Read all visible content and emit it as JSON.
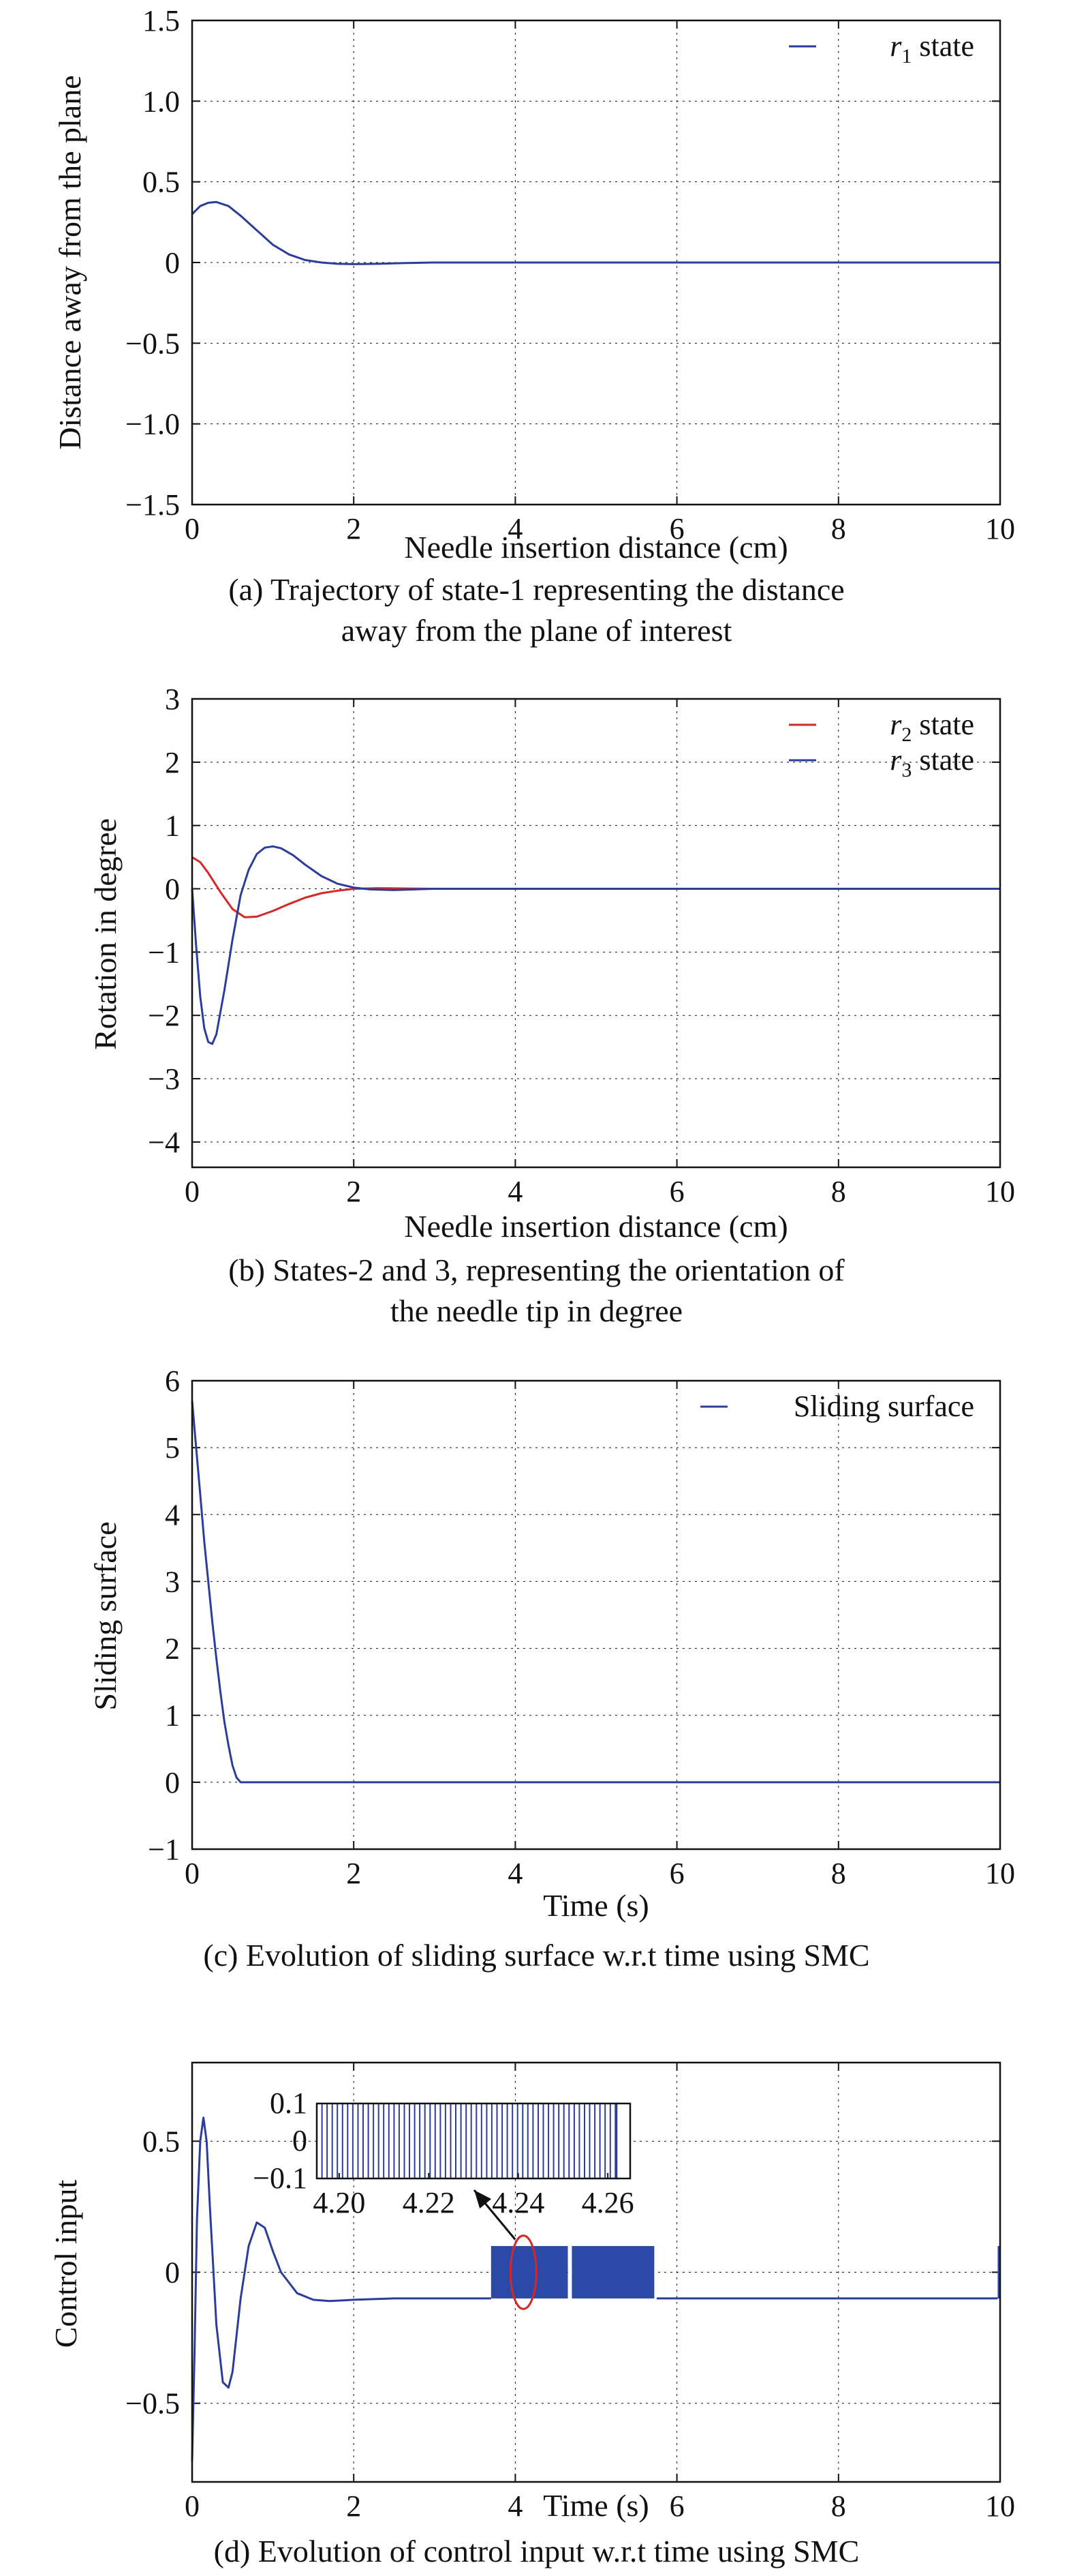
{
  "chart_data": [
    {
      "id": "a",
      "type": "line",
      "title": "",
      "xlabel": "Needle insertion distance (cm)",
      "ylabel": "Distance away from the plane",
      "xlim": [
        0,
        10
      ],
      "ylim": [
        -1.5,
        1.5
      ],
      "xticks": [
        "0",
        "2",
        "4",
        "6",
        "8",
        "10"
      ],
      "yticks": [
        "−1.5",
        "−1.0",
        "−0.5",
        "0",
        "0.5",
        "1.0",
        "1.5"
      ],
      "grid": true,
      "legend_position": "top-right",
      "series": [
        {
          "name": "r1 state",
          "legend_var": "r",
          "legend_sub": "1",
          "legend_rest": " state",
          "color": "#2b3d9a",
          "x": [
            0,
            0.1,
            0.2,
            0.3,
            0.45,
            0.6,
            0.8,
            1.0,
            1.2,
            1.4,
            1.6,
            1.8,
            2.0,
            2.3,
            2.6,
            3.0,
            4,
            6,
            8,
            10
          ],
          "y": [
            0.3,
            0.35,
            0.37,
            0.375,
            0.35,
            0.29,
            0.2,
            0.11,
            0.05,
            0.015,
            0.0,
            -0.008,
            -0.01,
            -0.008,
            -0.004,
            0.0,
            0.0,
            0.0,
            0.0,
            0.0
          ]
        }
      ],
      "caption_lines": [
        "(a) Trajectory of state-1 representing the distance",
        "away from the plane of interest"
      ]
    },
    {
      "id": "b",
      "type": "line",
      "title": "",
      "xlabel": "Needle insertion distance (cm)",
      "ylabel": "Rotation in degree",
      "xlim": [
        0,
        10
      ],
      "ylim": [
        -4.4,
        3
      ],
      "xticks": [
        "0",
        "2",
        "4",
        "6",
        "8",
        "10"
      ],
      "yticks": [
        "−4",
        "−3",
        "−2",
        "−1",
        "0",
        "1",
        "2",
        "3"
      ],
      "grid": true,
      "legend_position": "top-right",
      "series": [
        {
          "name": "r2 state",
          "legend_var": "r",
          "legend_sub": "2",
          "legend_rest": " state",
          "color": "#d62728",
          "x": [
            0,
            0.1,
            0.2,
            0.35,
            0.5,
            0.65,
            0.8,
            1.0,
            1.2,
            1.4,
            1.6,
            1.8,
            2.0,
            2.3,
            2.6,
            3.0,
            4,
            6,
            8,
            10
          ],
          "y": [
            0.5,
            0.42,
            0.25,
            -0.05,
            -0.32,
            -0.45,
            -0.44,
            -0.35,
            -0.24,
            -0.14,
            -0.07,
            -0.03,
            0.0,
            0.01,
            0.005,
            0.0,
            0.0,
            0.0,
            0.0,
            0.0
          ]
        },
        {
          "name": "r3 state",
          "legend_var": "r",
          "legend_sub": "3",
          "legend_rest": " state",
          "color": "#2b3d9a",
          "x": [
            0,
            0.05,
            0.1,
            0.15,
            0.2,
            0.25,
            0.3,
            0.4,
            0.5,
            0.6,
            0.7,
            0.8,
            0.9,
            1.0,
            1.1,
            1.25,
            1.4,
            1.6,
            1.8,
            2.0,
            2.2,
            2.5,
            3.0,
            4,
            6,
            8,
            10
          ],
          "y": [
            0.0,
            -0.9,
            -1.7,
            -2.2,
            -2.42,
            -2.45,
            -2.3,
            -1.6,
            -0.8,
            -0.1,
            0.3,
            0.55,
            0.65,
            0.67,
            0.64,
            0.53,
            0.38,
            0.2,
            0.08,
            0.02,
            -0.01,
            -0.02,
            0.0,
            0.0,
            0.0,
            0.0,
            0.0
          ]
        }
      ],
      "caption_lines": [
        "(b) States-2 and 3, representing the orientation of",
        "the needle tip in degree"
      ]
    },
    {
      "id": "c",
      "type": "line",
      "title": "",
      "xlabel": "Time (s)",
      "ylabel": "Sliding surface",
      "xlim": [
        0,
        10
      ],
      "ylim": [
        -1,
        6
      ],
      "xticks": [
        "0",
        "2",
        "4",
        "6",
        "8",
        "10"
      ],
      "yticks": [
        "−1",
        "0",
        "1",
        "2",
        "3",
        "4",
        "5",
        "6"
      ],
      "grid": true,
      "legend_position": "top-right",
      "series": [
        {
          "name": "Sliding surface",
          "legend_var": "",
          "legend_sub": "",
          "legend_rest": "Sliding surface",
          "color": "#2b3d9a",
          "x": [
            0,
            0.05,
            0.1,
            0.15,
            0.2,
            0.25,
            0.3,
            0.35,
            0.4,
            0.45,
            0.5,
            0.55,
            0.6,
            0.62,
            1,
            2,
            4,
            6,
            8,
            10
          ],
          "y": [
            5.7,
            5.0,
            4.3,
            3.6,
            3.0,
            2.4,
            1.85,
            1.35,
            0.9,
            0.55,
            0.25,
            0.07,
            0.0,
            0.0,
            0.0,
            0.0,
            0.0,
            0.0,
            0.0,
            0.0
          ]
        }
      ],
      "caption_lines": [
        "(c) Evolution of sliding surface w.r.t time using SMC"
      ]
    },
    {
      "id": "d",
      "type": "line",
      "title": "",
      "xlabel": "Time (s)",
      "ylabel": "Control input",
      "xlim": [
        0,
        10
      ],
      "ylim": [
        -0.8,
        0.8
      ],
      "xticks": [
        "0",
        "2",
        "4",
        "6",
        "8",
        "10"
      ],
      "yticks": [
        "−0.5",
        "0",
        "0.5"
      ],
      "ytick_values": [
        -0.5,
        0,
        0.5
      ],
      "grid": true,
      "series": [
        {
          "name": "",
          "color": "#2b3d9a",
          "x": [
            0,
            0.03,
            0.06,
            0.1,
            0.14,
            0.18,
            0.22,
            0.3,
            0.38,
            0.45,
            0.5,
            0.6,
            0.7,
            0.8,
            0.9,
            1.0,
            1.1,
            1.3,
            1.5,
            1.7,
            2.0,
            2.5,
            3.0,
            3.7
          ],
          "y": [
            -0.72,
            -0.3,
            0.2,
            0.5,
            0.59,
            0.5,
            0.25,
            -0.2,
            -0.42,
            -0.44,
            -0.38,
            -0.1,
            0.1,
            0.19,
            0.17,
            0.08,
            0.0,
            -0.08,
            -0.105,
            -0.11,
            -0.105,
            -0.1,
            -0.1,
            -0.1
          ]
        },
        {
          "name": "",
          "color": "#2b3d9a",
          "x": [
            5.75,
            6,
            7,
            8,
            9,
            9.97
          ],
          "y": [
            -0.1,
            -0.1,
            -0.1,
            -0.1,
            -0.1,
            -0.1
          ]
        }
      ],
      "chattering_bands": [
        {
          "x_start": 3.7,
          "x_end": 4.65,
          "y_low": -0.1,
          "y_high": 0.1
        },
        {
          "x_start": 4.7,
          "x_end": 5.72,
          "y_low": -0.1,
          "y_high": 0.1
        },
        {
          "x_start": 9.97,
          "x_end": 10.0,
          "y_low": -0.1,
          "y_high": 0.1
        }
      ],
      "highlight_ellipse": {
        "x_center": 4.1,
        "y_center": 0.0,
        "x_radius": 0.16,
        "y_radius": 0.14,
        "color": "#d62728"
      },
      "inset": {
        "xlim": [
          4.195,
          4.265
        ],
        "ylim": [
          -0.1,
          0.1
        ],
        "xticks": [
          "4.20",
          "4.22",
          "4.24",
          "4.26"
        ],
        "xtick_values": [
          4.2,
          4.22,
          4.24,
          4.26
        ],
        "yticks": [
          "−0.1",
          "0",
          "0.1"
        ],
        "ytick_values": [
          -0.1,
          0,
          0.1
        ],
        "x_start": 4.195,
        "x_end": 4.262,
        "switch_period": 0.00115,
        "color": "#2b3d9a"
      },
      "caption_lines": [
        "(d) Evolution of control input w.r.t time using SMC"
      ]
    }
  ]
}
